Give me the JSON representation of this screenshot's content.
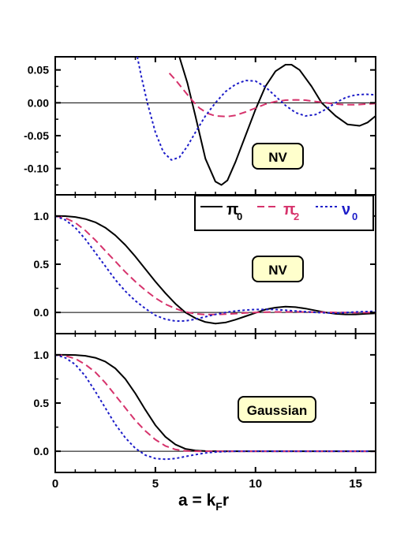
{
  "figure": {
    "xlabel": "a = k",
    "xlabel_sub": "F",
    "xlabel_tail": "r",
    "x_ticks": [
      "0",
      "5",
      "10",
      "15"
    ]
  },
  "legend": {
    "items": [
      {
        "symbol": "π",
        "sub": "0",
        "color": "#000000",
        "dash": "solid"
      },
      {
        "symbol": "π",
        "sub": "2",
        "color": "#d6336c",
        "dash": "dashed"
      },
      {
        "symbol": "ν",
        "sub": "0",
        "color": "#1c1cc8",
        "dash": "dotted"
      }
    ]
  },
  "panels": [
    {
      "id": "top",
      "label": "NV",
      "y_ticks": [
        "0.05",
        "0.00",
        "-0.05",
        "-0.10"
      ]
    },
    {
      "id": "middle",
      "label": "NV",
      "y_ticks": [
        "1.0",
        "0.5",
        "0.0"
      ]
    },
    {
      "id": "bottom",
      "label": "Gaussian",
      "y_ticks": [
        "1.0",
        "0.5",
        "0.0"
      ]
    }
  ],
  "chart_data": [
    {
      "type": "line",
      "xlim": [
        0,
        16
      ],
      "ylim": [
        -0.14,
        0.07
      ],
      "xlabel": "a = kFr",
      "series": [
        {
          "name": "π0",
          "color": "#000000",
          "x": [
            6.2,
            6.6,
            7.0,
            7.5,
            8.0,
            8.3,
            8.6,
            9.0,
            9.5,
            10.0,
            10.5,
            11.0,
            11.5,
            11.8,
            12.2,
            12.8,
            13.3,
            14.0,
            14.6,
            15.2,
            15.6,
            16.0
          ],
          "y": [
            0.07,
            0.03,
            -0.02,
            -0.085,
            -0.12,
            -0.125,
            -0.118,
            -0.09,
            -0.05,
            -0.01,
            0.025,
            0.048,
            0.058,
            0.058,
            0.05,
            0.025,
            0.0,
            -0.02,
            -0.033,
            -0.035,
            -0.03,
            -0.02
          ]
        },
        {
          "name": "π2",
          "color": "#d6336c",
          "x": [
            5.7,
            6.0,
            6.4,
            6.8,
            7.2,
            7.6,
            8.0,
            8.6,
            9.0,
            9.5,
            10.0,
            10.5,
            11.0,
            11.5,
            12.0,
            12.5,
            13.0,
            13.5,
            14.0,
            14.5,
            15.0,
            15.5,
            16.0
          ],
          "y": [
            0.045,
            0.035,
            0.02,
            0.005,
            -0.008,
            -0.016,
            -0.02,
            -0.021,
            -0.019,
            -0.014,
            -0.008,
            -0.002,
            0.002,
            0.004,
            0.0045,
            0.004,
            0.002,
            0.0,
            -0.002,
            -0.003,
            -0.003,
            -0.002,
            -0.001
          ]
        },
        {
          "name": "ν0",
          "color": "#1c1cc8",
          "x": [
            4.1,
            4.3,
            4.6,
            5.0,
            5.4,
            5.8,
            6.2,
            6.6,
            7.0,
            7.5,
            8.0,
            8.5,
            9.0,
            9.5,
            10.0,
            10.5,
            11.0,
            11.5,
            12.0,
            12.5,
            13.0,
            13.5,
            14.0,
            14.5,
            15.0,
            15.5,
            16.0
          ],
          "y": [
            0.07,
            0.04,
            0.0,
            -0.045,
            -0.075,
            -0.087,
            -0.083,
            -0.066,
            -0.045,
            -0.02,
            0.0,
            0.017,
            0.028,
            0.034,
            0.033,
            0.024,
            0.01,
            -0.004,
            -0.015,
            -0.02,
            -0.018,
            -0.01,
            0.0,
            0.008,
            0.012,
            0.013,
            0.012
          ]
        }
      ]
    },
    {
      "type": "line",
      "xlim": [
        0,
        16
      ],
      "ylim": [
        -0.22,
        1.22
      ],
      "series": [
        {
          "name": "π0",
          "color": "#000000",
          "x": [
            0,
            0.5,
            1.0,
            1.5,
            2.0,
            2.5,
            3.0,
            3.5,
            4.0,
            4.5,
            5.0,
            5.5,
            6.0,
            6.5,
            7.0,
            7.5,
            8.0,
            8.5,
            9.0,
            9.5,
            10.0,
            10.5,
            11.0,
            11.5,
            12.0,
            12.5,
            13.0,
            13.5,
            14.0,
            14.5,
            15.0,
            15.5,
            16.0
          ],
          "y": [
            1.0,
            0.999,
            0.99,
            0.97,
            0.935,
            0.88,
            0.8,
            0.7,
            0.58,
            0.45,
            0.32,
            0.2,
            0.09,
            0.0,
            -0.06,
            -0.1,
            -0.115,
            -0.105,
            -0.075,
            -0.04,
            -0.005,
            0.03,
            0.05,
            0.06,
            0.055,
            0.04,
            0.02,
            0.0,
            -0.015,
            -0.02,
            -0.02,
            -0.015,
            -0.01
          ]
        },
        {
          "name": "π2",
          "color": "#d6336c",
          "x": [
            0,
            0.5,
            1.0,
            1.5,
            2.0,
            2.5,
            3.0,
            3.5,
            4.0,
            4.5,
            5.0,
            5.5,
            6.0,
            6.5,
            7.0,
            7.5,
            8.0,
            8.5,
            9.0,
            9.5,
            10.0,
            11.0,
            12.0,
            13.0,
            14.0,
            15.0,
            16.0
          ],
          "y": [
            1.0,
            0.98,
            0.93,
            0.85,
            0.75,
            0.64,
            0.53,
            0.42,
            0.32,
            0.23,
            0.15,
            0.085,
            0.04,
            0.005,
            -0.015,
            -0.022,
            -0.022,
            -0.018,
            -0.012,
            -0.006,
            0.0,
            0.005,
            0.006,
            0.003,
            0.0,
            -0.002,
            -0.001
          ]
        },
        {
          "name": "ν0",
          "color": "#1c1cc8",
          "x": [
            0,
            0.5,
            1.0,
            1.5,
            2.0,
            2.5,
            3.0,
            3.5,
            4.0,
            4.5,
            5.0,
            5.5,
            6.0,
            6.5,
            7.0,
            7.5,
            8.0,
            8.5,
            9.0,
            9.5,
            10.0,
            11.0,
            12.0,
            13.0,
            14.0,
            15.0,
            16.0
          ],
          "y": [
            1.0,
            0.96,
            0.88,
            0.76,
            0.62,
            0.48,
            0.34,
            0.22,
            0.12,
            0.04,
            -0.03,
            -0.07,
            -0.09,
            -0.088,
            -0.07,
            -0.045,
            -0.02,
            0.0,
            0.015,
            0.025,
            0.03,
            0.03,
            0.015,
            0.0,
            -0.008,
            0.005,
            0.012
          ]
        }
      ]
    },
    {
      "type": "line",
      "xlim": [
        0,
        16
      ],
      "ylim": [
        -0.22,
        1.22
      ],
      "series": [
        {
          "name": "π0",
          "color": "#000000",
          "x": [
            0,
            0.5,
            1.0,
            1.5,
            2.0,
            2.5,
            3.0,
            3.5,
            4.0,
            4.5,
            5.0,
            5.5,
            6.0,
            6.5,
            7.0,
            7.5,
            8.0,
            9.0,
            10.0,
            12.0,
            16.0
          ],
          "y": [
            1.0,
            1.0,
            0.998,
            0.99,
            0.97,
            0.93,
            0.86,
            0.75,
            0.6,
            0.43,
            0.27,
            0.15,
            0.07,
            0.025,
            0.008,
            0.002,
            0.0,
            0.0,
            0.0,
            0.0,
            0.0
          ]
        },
        {
          "name": "π2",
          "color": "#d6336c",
          "x": [
            0,
            0.5,
            1.0,
            1.5,
            2.0,
            2.5,
            3.0,
            3.5,
            4.0,
            4.5,
            5.0,
            5.5,
            6.0,
            6.5,
            7.0,
            7.5,
            8.0,
            9.0,
            10.0,
            12.0,
            16.0
          ],
          "y": [
            1.0,
            0.99,
            0.96,
            0.9,
            0.82,
            0.71,
            0.58,
            0.45,
            0.32,
            0.21,
            0.12,
            0.055,
            0.018,
            0.004,
            0.0,
            0.0,
            0.0,
            0.0,
            0.0,
            0.0,
            0.0
          ]
        },
        {
          "name": "ν0",
          "color": "#1c1cc8",
          "x": [
            0,
            0.5,
            1.0,
            1.5,
            2.0,
            2.5,
            3.0,
            3.5,
            4.0,
            4.5,
            5.0,
            5.5,
            6.0,
            6.5,
            7.0,
            7.5,
            8.0,
            8.5,
            9.0,
            10.0,
            12.0,
            16.0
          ],
          "y": [
            1.0,
            0.97,
            0.9,
            0.78,
            0.62,
            0.45,
            0.28,
            0.14,
            0.03,
            -0.04,
            -0.075,
            -0.083,
            -0.075,
            -0.055,
            -0.035,
            -0.018,
            -0.008,
            -0.003,
            0.0,
            0.0,
            0.0,
            0.0
          ]
        }
      ]
    }
  ]
}
